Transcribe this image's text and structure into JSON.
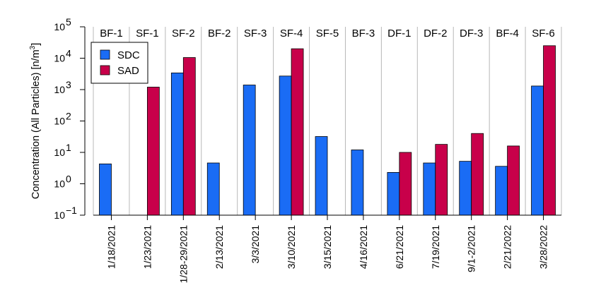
{
  "chart_data": {
    "type": "bar",
    "log_scale": true,
    "ylim": [
      0.1,
      100000
    ],
    "y_ticks": [
      {
        "base": "10",
        "exp": "5"
      },
      {
        "base": "10",
        "exp": "4"
      },
      {
        "base": "10",
        "exp": "3"
      },
      {
        "base": "10",
        "exp": "2"
      },
      {
        "base": "10",
        "exp": "1"
      },
      {
        "base": "10",
        "exp": "0"
      },
      {
        "base": "10",
        "exp": "−1"
      }
    ],
    "ylabel": {
      "text": "Concentration (All Particles) [n/m",
      "sup": "3",
      "close": "]"
    },
    "groups": [
      "BF-1",
      "SF-1",
      "SF-2",
      "BF-2",
      "SF-3",
      "SF-4",
      "SF-5",
      "BF-3",
      "DF-1",
      "DF-2",
      "DF-3",
      "BF-4",
      "SF-6"
    ],
    "categories": [
      "1/18/2021",
      "1/23/2021",
      "1/28-29/2021",
      "2/13/2021",
      "3/3/2021",
      "3/10/2021",
      "3/15/2021",
      "4/16/2021",
      "6/21/2021",
      "7/19/2021",
      "9/1-2/2021",
      "2/21/2022",
      "3/28/2022"
    ],
    "series": [
      {
        "name": "SDC",
        "color": "#1a6cf5",
        "values": [
          4.3,
          null,
          3400,
          4.6,
          1400,
          2700,
          32,
          12,
          2.3,
          4.6,
          5.2,
          3.6,
          1300
        ]
      },
      {
        "name": "SAD",
        "color": "#c8004a",
        "values": [
          null,
          1200,
          10500,
          null,
          null,
          20000,
          null,
          null,
          10,
          18,
          40,
          16,
          25000
        ]
      }
    ],
    "legend_position": "top-left",
    "grid": "vertical separators between groups"
  }
}
